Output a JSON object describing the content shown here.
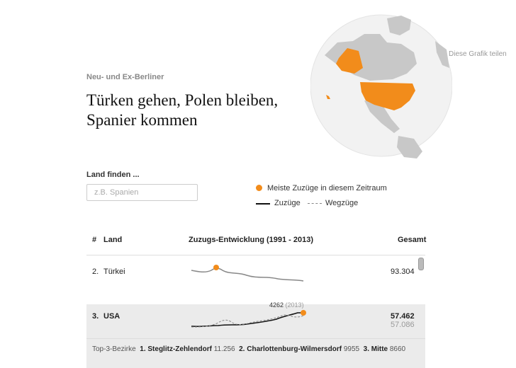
{
  "header": {
    "kicker": "Neu- und Ex-Berliner",
    "title": "Türken gehen, Polen bleiben, Spanier kommen",
    "share_label": "Diese Grafik teilen"
  },
  "search": {
    "label": "Land finden ...",
    "placeholder": "z.B. Spanien",
    "value": ""
  },
  "legend": {
    "max_label": "Meiste Zuzüge in diesem Zeitraum",
    "zuzuege_label": "Zuzüge",
    "wegzuege_label": "Wegzüge"
  },
  "table": {
    "headers": {
      "rank": "#",
      "country": "Land",
      "trend": "Zuzugs-Entwicklung (1991 - 2013)",
      "total": "Gesamt"
    },
    "rows": [
      {
        "rank": "2.",
        "country": "Türkei",
        "total": "93.304",
        "total_weg": ""
      },
      {
        "rank": "3.",
        "country": "USA",
        "total": "57.462",
        "total_weg": "57.086",
        "annotation_value": "4262",
        "annotation_year": "(2013)"
      }
    ],
    "bezirke": {
      "label": "Top-3-Bezirke",
      "items": [
        {
          "name": "1. Steglitz-Zehlendorf",
          "value": "11.256"
        },
        {
          "name": "2. Charlottenburg-Wilmersdorf",
          "value": "9955"
        },
        {
          "name": "3. Mitte",
          "value": "8660"
        }
      ]
    }
  },
  "colors": {
    "accent": "#f28c1b",
    "highlight_row": "#ebebeb"
  },
  "globe": {
    "highlighted_country": "USA"
  }
}
